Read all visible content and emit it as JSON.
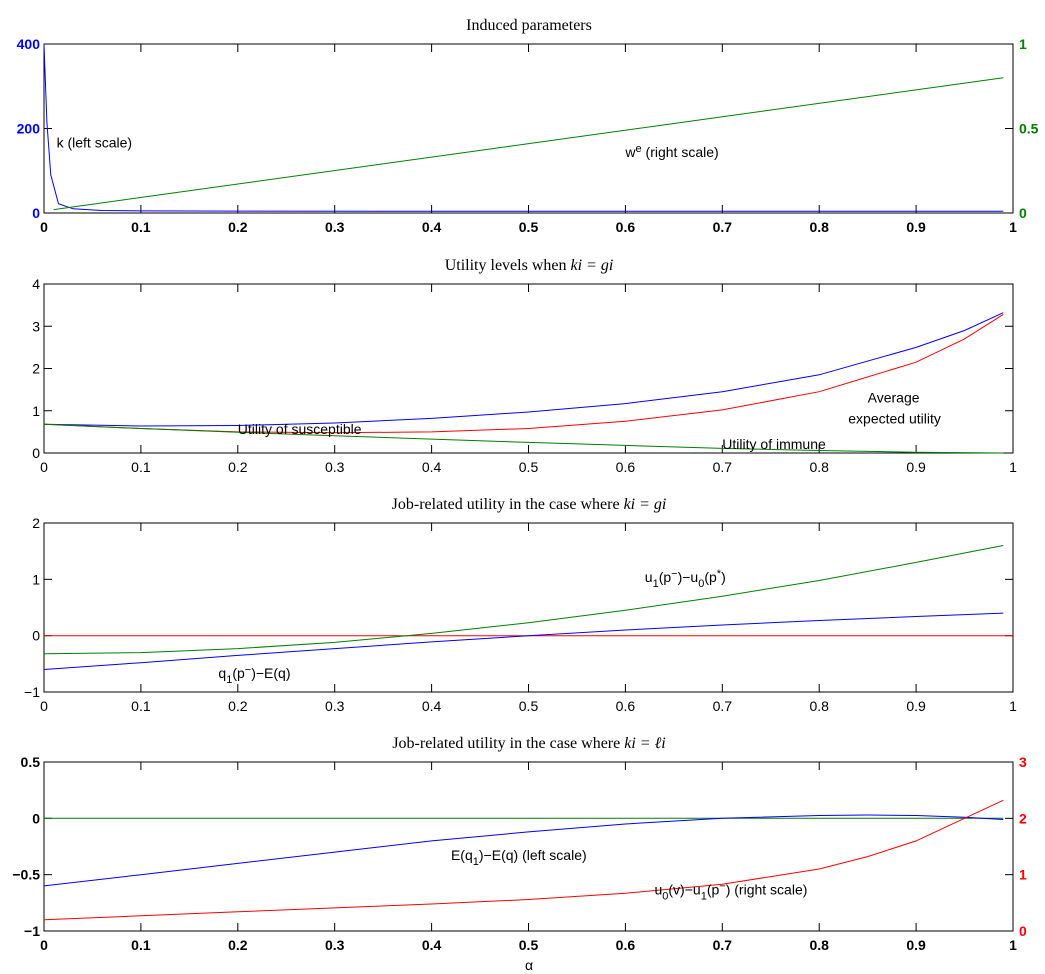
{
  "figure": {
    "xlabel": "α"
  },
  "chart_data": [
    {
      "type": "line",
      "title": "Induced parameters",
      "xlim": [
        0,
        1
      ],
      "ylim_left": [
        0,
        400
      ],
      "ylim_right": [
        0,
        1
      ],
      "xticks": [
        "0",
        "0.1",
        "0.2",
        "0.3",
        "0.4",
        "0.5",
        "0.6",
        "0.7",
        "0.8",
        "0.9",
        "1"
      ],
      "yticks_left": [
        "0",
        "200",
        "400"
      ],
      "yticks_right": [
        "0",
        "0.5",
        "1"
      ],
      "left_color": "#0000ff",
      "right_color": "#008000",
      "series": [
        {
          "color": "#0000ff",
          "axis": "left",
          "x": [
            0,
            0.003,
            0.007,
            0.015,
            0.03,
            0.06,
            0.1,
            0.2,
            0.4,
            0.6,
            0.8,
            0.99
          ],
          "y": [
            400,
            215,
            90,
            22,
            10,
            6,
            5,
            4.5,
            4,
            4,
            4,
            4
          ]
        },
        {
          "color": "#008000",
          "axis": "right",
          "x": [
            0.01,
            0.99
          ],
          "y": [
            0.02,
            0.8
          ]
        }
      ],
      "annotations": [
        {
          "main": "k (left scale)",
          "x": 0.013,
          "y": 155,
          "axis": "left"
        },
        {
          "main": "w",
          "sup": "e",
          "rest": " (right scale)",
          "x": 0.6,
          "y": 0.33,
          "axis": "right"
        }
      ]
    },
    {
      "type": "line",
      "title_prefix": "Utility levels when ",
      "title_math": "ki = gi",
      "xlim": [
        0,
        1
      ],
      "ylim": [
        0,
        4
      ],
      "xticks": [
        "0",
        "0.1",
        "0.2",
        "0.3",
        "0.4",
        "0.5",
        "0.6",
        "0.7",
        "0.8",
        "0.9",
        "1"
      ],
      "yticks": [
        "0",
        "1",
        "2",
        "3",
        "4"
      ],
      "series": [
        {
          "color": "#0000ff",
          "x": [
            0,
            0.1,
            0.2,
            0.3,
            0.4,
            0.5,
            0.6,
            0.7,
            0.8,
            0.9,
            0.95,
            0.99
          ],
          "y": [
            0.68,
            0.64,
            0.65,
            0.71,
            0.82,
            0.97,
            1.17,
            1.45,
            1.85,
            2.5,
            2.9,
            3.32
          ]
        },
        {
          "color": "#ff0000",
          "x": [
            0,
            0.1,
            0.2,
            0.3,
            0.4,
            0.5,
            0.6,
            0.7,
            0.8,
            0.9,
            0.95,
            0.99
          ],
          "y": [
            0.68,
            0.58,
            0.5,
            0.48,
            0.5,
            0.58,
            0.75,
            1.02,
            1.45,
            2.15,
            2.7,
            3.28
          ]
        },
        {
          "color": "#008000",
          "x": [
            0,
            0.1,
            0.2,
            0.3,
            0.4,
            0.5,
            0.6,
            0.7,
            0.8,
            0.9,
            0.99
          ],
          "y": [
            0.68,
            0.58,
            0.49,
            0.41,
            0.33,
            0.25,
            0.18,
            0.11,
            0.06,
            0.02,
            0.0
          ]
        }
      ],
      "annotations": [
        {
          "main": "Utility of susceptible",
          "x": 0.2,
          "y": 0.45
        },
        {
          "main": "Average",
          "x": 0.85,
          "y": 1.2
        },
        {
          "main": "expected utility",
          "x": 0.83,
          "y": 0.7
        },
        {
          "main": "Utility of immune",
          "x": 0.7,
          "y": 0.1
        }
      ]
    },
    {
      "type": "line",
      "title_prefix": "Job-related utility in the case where ",
      "title_math": "ki = gi",
      "xlim": [
        0,
        1
      ],
      "ylim": [
        -1,
        2
      ],
      "xticks": [
        "0",
        "0.1",
        "0.2",
        "0.3",
        "0.4",
        "0.5",
        "0.6",
        "0.7",
        "0.8",
        "0.9",
        "1"
      ],
      "yticks": [
        "−1",
        "0",
        "1",
        "2"
      ],
      "series": [
        {
          "color": "#ff0000",
          "x": [
            0,
            1
          ],
          "y": [
            0,
            0
          ]
        },
        {
          "color": "#0000ff",
          "x": [
            0,
            0.1,
            0.2,
            0.3,
            0.4,
            0.5,
            0.6,
            0.7,
            0.8,
            0.9,
            0.99
          ],
          "y": [
            -0.6,
            -0.48,
            -0.35,
            -0.23,
            -0.11,
            0.0,
            0.1,
            0.19,
            0.27,
            0.34,
            0.4
          ]
        },
        {
          "color": "#008000",
          "x": [
            0,
            0.1,
            0.2,
            0.3,
            0.4,
            0.5,
            0.6,
            0.7,
            0.8,
            0.9,
            0.99
          ],
          "y": [
            -0.32,
            -0.3,
            -0.23,
            -0.12,
            0.04,
            0.23,
            0.45,
            0.7,
            0.98,
            1.3,
            1.6
          ]
        }
      ],
      "annotations": [
        {
          "main": "u",
          "sub": "1",
          "rest": "(p",
          "sup": "−",
          "rest2": ")−u",
          "sub2": "0",
          "rest3": "(p",
          "sup2": "*",
          "rest4": ")",
          "x": 0.62,
          "y": 0.95
        },
        {
          "main": "q",
          "sub": "1",
          "rest": "(p",
          "sup": "−",
          "rest2": ")−E(q)",
          "x": 0.18,
          "y": -0.75
        }
      ]
    },
    {
      "type": "line",
      "title_prefix": "Job-related utility in the case where ",
      "title_math": "ki = ℓi",
      "xlim": [
        0,
        1
      ],
      "ylim_left": [
        -1,
        0.5
      ],
      "ylim_right": [
        0,
        3
      ],
      "xticks": [
        "0",
        "0.1",
        "0.2",
        "0.3",
        "0.4",
        "0.5",
        "0.6",
        "0.7",
        "0.8",
        "0.9",
        "1"
      ],
      "yticks_left": [
        "−1",
        "−0.5",
        "0",
        "0.5"
      ],
      "yticks_right": [
        "0",
        "1",
        "2",
        "3"
      ],
      "left_color": "#000000",
      "right_color": "#ff0000",
      "series": [
        {
          "color": "#008000",
          "axis": "left",
          "x": [
            0,
            0.99
          ],
          "y": [
            0,
            0
          ]
        },
        {
          "color": "#0000ff",
          "axis": "left",
          "x": [
            0,
            0.1,
            0.2,
            0.3,
            0.4,
            0.5,
            0.6,
            0.7,
            0.8,
            0.85,
            0.9,
            0.95,
            0.99
          ],
          "y": [
            -0.6,
            -0.5,
            -0.4,
            -0.3,
            -0.2,
            -0.12,
            -0.05,
            0.0,
            0.025,
            0.03,
            0.025,
            0.01,
            -0.01
          ]
        },
        {
          "color": "#ff0000",
          "axis": "right",
          "x": [
            0,
            0.1,
            0.2,
            0.3,
            0.4,
            0.5,
            0.6,
            0.7,
            0.8,
            0.85,
            0.9,
            0.95,
            0.99
          ],
          "y": [
            0.2,
            0.27,
            0.34,
            0.41,
            0.48,
            0.56,
            0.67,
            0.83,
            1.1,
            1.32,
            1.6,
            2.0,
            2.32
          ]
        }
      ],
      "annotations": [
        {
          "main": "E(q",
          "sub": "1",
          "rest": ")−E(q) (left scale)",
          "x": 0.42,
          "y": -0.37,
          "axis": "left"
        },
        {
          "main": "u",
          "sub": "0",
          "rest": "(v)−u",
          "sub2": "1",
          "rest2": "(p",
          "sup": "−",
          "rest3": ") (right scale)",
          "x": 0.63,
          "y": 0.65,
          "axis": "right"
        }
      ]
    }
  ]
}
